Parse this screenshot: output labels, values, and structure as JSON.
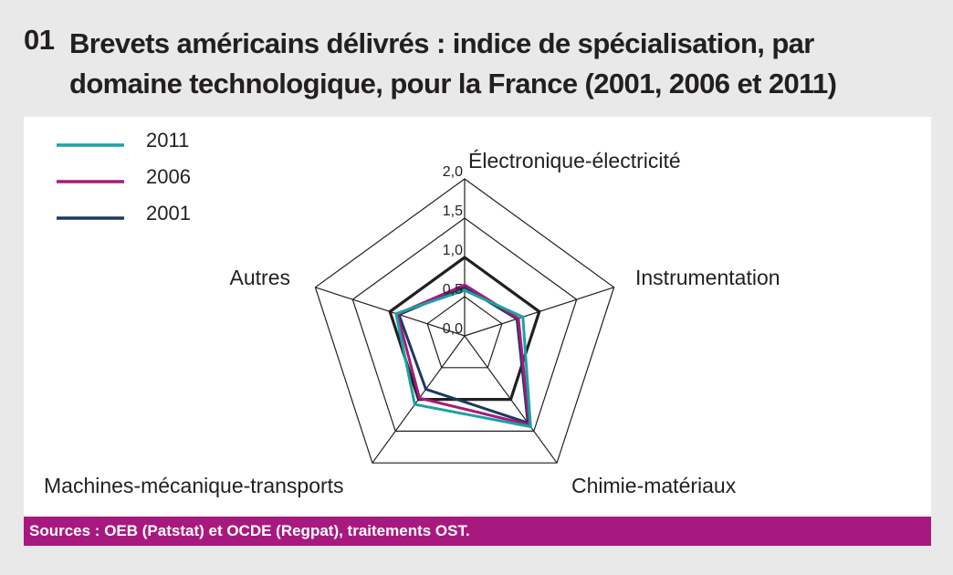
{
  "header": {
    "number": "01",
    "title": "Brevets américains délivrés : indice de spécialisation, par domaine technologique, pour la France (2001, 2006 et 2011)"
  },
  "footer": {
    "source": "Sources : OEB (Patstat) et OCDE (Regpat), traitements OST."
  },
  "colors": {
    "background": "#e9e9e9",
    "panel": "#ffffff",
    "source_bar": "#a8197f",
    "grid": "#231f20"
  },
  "chart_data": {
    "type": "radar",
    "title": "",
    "axes": [
      "Électronique-électricité",
      "Instrumentation",
      "Chimie-matériaux",
      "Machines-mécanique-transports",
      "Autres"
    ],
    "rlim": [
      0,
      2.0
    ],
    "ticks": [
      "0,0",
      "0,5",
      "1,0",
      "1,5",
      "2,0"
    ],
    "tick_values": [
      0,
      0.5,
      1.0,
      1.5,
      2.0
    ],
    "reference_value": 1.0,
    "grid": true,
    "legend_position": "top-left",
    "series": [
      {
        "name": "2011",
        "color": "#1aa2a4",
        "values": [
          0.58,
          0.78,
          1.43,
          1.08,
          0.92
        ]
      },
      {
        "name": "2006",
        "color": "#a8197f",
        "values": [
          0.65,
          0.72,
          1.4,
          0.98,
          0.9
        ]
      },
      {
        "name": "2001",
        "color": "#1c3a5e",
        "values": [
          0.62,
          0.7,
          1.37,
          0.84,
          0.88
        ]
      }
    ]
  }
}
